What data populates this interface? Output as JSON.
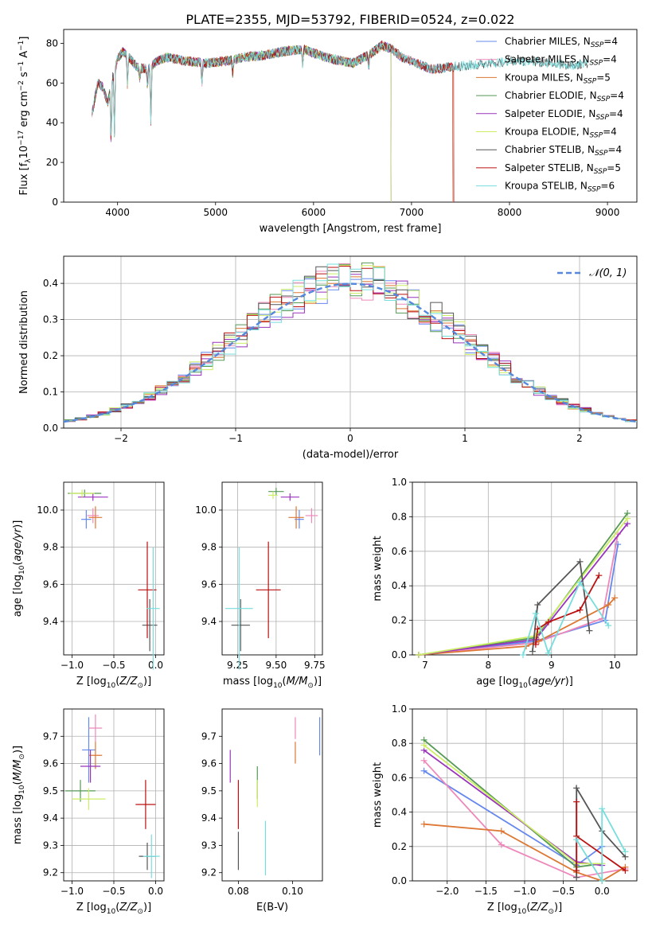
{
  "title": "PLATE=2355, MJD=53792, FIBERID=0524, z=0.022",
  "colors": {
    "chabrier_miles": "#6688ee",
    "salpeter_miles": "#ee88bb",
    "kroupa_miles": "#dd7733",
    "chabrier_elodie": "#559955",
    "salpeter_elodie": "#9933bb",
    "kroupa_elodie": "#ccee66",
    "chabrier_stelib": "#555555",
    "salpeter_stelib": "#bb1111",
    "kroupa_stelib": "#77dddd",
    "gaussian": "#5588dd",
    "grid": "#b0b0b0"
  },
  "chart_data": [
    {
      "id": "spectrum",
      "type": "line",
      "xlabel": "wavelength [Angstrom, rest frame]",
      "ylabel": "Flux [f$_\\lambda$10$^{-17}$ erg cm$^{-2}$ s$^{-1}$ A$^{-1}$]",
      "xlim": [
        3450,
        9300
      ],
      "ylim": [
        0,
        87
      ],
      "xticks": [
        4000,
        5000,
        6000,
        7000,
        8000,
        9000
      ],
      "yticks": [
        0,
        20,
        40,
        60,
        80
      ],
      "grid": false,
      "legend_position": "top-right",
      "legend": [
        {
          "label": "Chabrier MILES, N",
          "sub": "SSP",
          "suffix": "=4",
          "color_key": "chabrier_miles"
        },
        {
          "label": "Salpeter MILES, N",
          "sub": "SSP",
          "suffix": "=4",
          "color_key": "salpeter_miles"
        },
        {
          "label": "Kroupa MILES, N",
          "sub": "SSP",
          "suffix": "=5",
          "color_key": "kroupa_miles"
        },
        {
          "label": "Chabrier ELODIE, N",
          "sub": "SSP",
          "suffix": "=4",
          "color_key": "chabrier_elodie"
        },
        {
          "label": "Salpeter ELODIE, N",
          "sub": "SSP",
          "suffix": "=4",
          "color_key": "salpeter_elodie"
        },
        {
          "label": "Kroupa ELODIE, N",
          "sub": "SSP",
          "suffix": "=4",
          "color_key": "kroupa_elodie"
        },
        {
          "label": "Chabrier STELIB, N",
          "sub": "SSP",
          "suffix": "=4",
          "color_key": "chabrier_stelib"
        },
        {
          "label": "Salpeter STELIB, N",
          "sub": "SSP",
          "suffix": "=5",
          "color_key": "salpeter_stelib"
        },
        {
          "label": "Kroupa STELIB, N",
          "sub": "SSP",
          "suffix": "=6",
          "color_key": "kroupa_stelib"
        }
      ],
      "continuum": [
        [
          3740,
          45
        ],
        [
          3800,
          60
        ],
        [
          3850,
          58
        ],
        [
          3900,
          50
        ],
        [
          3950,
          63
        ],
        [
          4000,
          72
        ],
        [
          4050,
          76
        ],
        [
          4100,
          74
        ],
        [
          4200,
          68
        ],
        [
          4300,
          67
        ],
        [
          4400,
          71
        ],
        [
          4500,
          73
        ],
        [
          4700,
          71
        ],
        [
          4900,
          70
        ],
        [
          5100,
          71
        ],
        [
          5300,
          73
        ],
        [
          5500,
          74
        ],
        [
          5700,
          76
        ],
        [
          5900,
          77
        ],
        [
          6000,
          75
        ],
        [
          6200,
          72
        ],
        [
          6400,
          70
        ],
        [
          6560,
          74
        ],
        [
          6700,
          79
        ],
        [
          6800,
          77
        ],
        [
          6900,
          73
        ],
        [
          7000,
          71
        ],
        [
          7200,
          67
        ],
        [
          7400,
          68
        ],
        [
          7600,
          69
        ],
        [
          7800,
          70
        ],
        [
          8000,
          71
        ],
        [
          8200,
          71
        ],
        [
          8400,
          70
        ],
        [
          8600,
          69
        ],
        [
          8800,
          70
        ]
      ],
      "features": [
        [
          3934,
          -28
        ],
        [
          3968,
          -32
        ],
        [
          4101,
          -15
        ],
        [
          4340,
          -28
        ],
        [
          4861,
          -10
        ],
        [
          5175,
          -7
        ],
        [
          5890,
          -9
        ],
        [
          6563,
          -6
        ],
        [
          3727,
          -12
        ],
        [
          4226,
          -6
        ],
        [
          4305,
          -10
        ]
      ],
      "series_ranges": {
        "chabrier_miles": [
          3740,
          7420
        ],
        "salpeter_miles": [
          3740,
          7420
        ],
        "kroupa_miles": [
          3740,
          7420
        ],
        "chabrier_elodie": [
          3740,
          6790
        ],
        "salpeter_elodie": [
          3740,
          6790
        ],
        "kroupa_elodie": [
          3900,
          6790
        ],
        "chabrier_stelib": [
          3740,
          8800
        ],
        "salpeter_stelib": [
          3740,
          7430
        ],
        "kroupa_stelib": [
          3740,
          8800
        ]
      }
    },
    {
      "id": "residuals",
      "type": "histogram",
      "xlabel": "(data-model)/error",
      "ylabel": "Normed distribution",
      "xlim": [
        -2.5,
        2.5
      ],
      "ylim": [
        0,
        0.475
      ],
      "xticks": [
        -2,
        -1,
        0,
        1,
        2
      ],
      "yticks": [
        0.0,
        0.1,
        0.2,
        0.3,
        0.4
      ],
      "grid": true,
      "bins": {
        "start": -2.5,
        "width": 0.1,
        "count": 50
      },
      "legend": [
        {
          "label": "$\\mathcal{N}(0, 1)$",
          "color_key": "gaussian",
          "style": "dashed"
        }
      ],
      "legend_position": "top-right",
      "gaussian": {
        "mean": 0,
        "sigma": 1
      }
    },
    {
      "id": "age_vs_Z",
      "type": "scatter",
      "xlabel": "Z [log$_{10}$($Z/Z_\\odot$)]",
      "ylabel": "age  [log$_{10}$($age/yr$)]",
      "xlim": [
        -1.1,
        0.1
      ],
      "ylim": [
        9.22,
        10.15
      ],
      "xticks": [
        -1.0,
        -0.5,
        0.0
      ],
      "yticks": [
        9.4,
        9.6,
        9.8,
        10.0
      ],
      "grid": true,
      "points": [
        {
          "s": "chabrier_elodie",
          "x": -0.85,
          "y": 10.09,
          "xe": 0.2,
          "ye": 0.02
        },
        {
          "s": "salpeter_elodie",
          "x": -0.75,
          "y": 10.07,
          "xe": 0.18,
          "ye": 0.02
        },
        {
          "s": "kroupa_elodie",
          "x": -0.88,
          "y": 10.09,
          "xe": 0.15,
          "ye": 0.02
        },
        {
          "s": "chabrier_miles",
          "x": -0.83,
          "y": 9.95,
          "xe": 0.06,
          "ye": 0.05
        },
        {
          "s": "salpeter_miles",
          "x": -0.75,
          "y": 9.97,
          "xe": 0.07,
          "ye": 0.04
        },
        {
          "s": "kroupa_miles",
          "x": -0.72,
          "y": 9.96,
          "xe": 0.08,
          "ye": 0.06
        },
        {
          "s": "chabrier_stelib",
          "x": -0.07,
          "y": 9.38,
          "xe": 0.09,
          "ye": 0.14
        },
        {
          "s": "salpeter_stelib",
          "x": -0.1,
          "y": 9.57,
          "xe": 0.11,
          "ye": 0.26
        },
        {
          "s": "kroupa_stelib",
          "x": -0.03,
          "y": 9.47,
          "xe": 0.08,
          "ye": 0.33
        }
      ]
    },
    {
      "id": "age_vs_mass",
      "type": "scatter",
      "xlabel": "mass [log$_{10}$($M/M_\\odot$)]",
      "ylabel": "",
      "xlim": [
        9.15,
        9.8
      ],
      "ylim": [
        9.22,
        10.15
      ],
      "xticks": [
        9.25,
        9.5,
        9.75
      ],
      "yticks": [
        9.4,
        9.6,
        9.8,
        10.0
      ],
      "grid": true,
      "points": [
        {
          "s": "chabrier_elodie",
          "x": 9.5,
          "y": 10.1,
          "xe": 0.05,
          "ye": 0.02
        },
        {
          "s": "salpeter_elodie",
          "x": 9.59,
          "y": 10.07,
          "xe": 0.06,
          "ye": 0.02
        },
        {
          "s": "kroupa_elodie",
          "x": 9.48,
          "y": 10.08,
          "xe": 0.03,
          "ye": 0.02
        },
        {
          "s": "chabrier_miles",
          "x": 9.65,
          "y": 9.95,
          "xe": 0.03,
          "ye": 0.05
        },
        {
          "s": "salpeter_miles",
          "x": 9.73,
          "y": 9.97,
          "xe": 0.04,
          "ye": 0.04
        },
        {
          "s": "kroupa_miles",
          "x": 9.63,
          "y": 9.96,
          "xe": 0.05,
          "ye": 0.06
        },
        {
          "s": "chabrier_stelib",
          "x": 9.27,
          "y": 9.38,
          "xe": 0.06,
          "ye": 0.14
        },
        {
          "s": "salpeter_stelib",
          "x": 9.45,
          "y": 9.57,
          "xe": 0.08,
          "ye": 0.26
        },
        {
          "s": "kroupa_stelib",
          "x": 9.26,
          "y": 9.47,
          "xe": 0.09,
          "ye": 0.33
        }
      ]
    },
    {
      "id": "weight_vs_age",
      "type": "line",
      "xlabel": "age  [log$_{10}$($age/yr$)]",
      "ylabel": "mass weight",
      "xlim": [
        6.8,
        10.35
      ],
      "ylim": [
        0,
        1.0
      ],
      "xticks": [
        7,
        8,
        9,
        10
      ],
      "yticks": [
        0.0,
        0.2,
        0.4,
        0.6,
        0.8,
        1.0
      ],
      "grid": true,
      "series": [
        {
          "s": "chabrier_miles",
          "x": [
            6.9,
            8.75,
            9.85,
            10.05
          ],
          "y": [
            0.0,
            0.08,
            0.2,
            0.64
          ]
        },
        {
          "s": "salpeter_miles",
          "x": [
            6.9,
            8.75,
            9.8,
            10.05
          ],
          "y": [
            0.0,
            0.07,
            0.21,
            0.7
          ]
        },
        {
          "s": "kroupa_miles",
          "x": [
            6.9,
            8.6,
            8.8,
            9.9,
            10.0
          ],
          "y": [
            0.0,
            0.05,
            0.08,
            0.29,
            0.33
          ]
        },
        {
          "s": "chabrier_elodie",
          "x": [
            6.9,
            8.75,
            10.2
          ],
          "y": [
            0.0,
            0.1,
            0.82
          ]
        },
        {
          "s": "salpeter_elodie",
          "x": [
            6.9,
            8.75,
            10.2
          ],
          "y": [
            0.0,
            0.09,
            0.76
          ]
        },
        {
          "s": "kroupa_elodie",
          "x": [
            6.9,
            8.75,
            10.2
          ],
          "y": [
            0.0,
            0.11,
            0.79
          ]
        },
        {
          "s": "chabrier_stelib",
          "x": [
            8.7,
            8.78,
            9.45,
            9.6
          ],
          "y": [
            0.02,
            0.29,
            0.54,
            0.14
          ]
        },
        {
          "s": "salpeter_stelib",
          "x": [
            8.75,
            8.78,
            8.95,
            9.45,
            9.75
          ],
          "y": [
            0.06,
            0.15,
            0.19,
            0.26,
            0.46
          ]
        },
        {
          "s": "kroupa_stelib",
          "x": [
            8.55,
            8.75,
            8.95,
            9.45,
            9.9
          ],
          "y": [
            0.0,
            0.24,
            0.01,
            0.42,
            0.17
          ]
        }
      ]
    },
    {
      "id": "mass_vs_Z",
      "type": "scatter",
      "xlabel": "Z [log$_{10}$($Z/Z_\\odot$)]",
      "ylabel": "mass [log$_{10}$($M/M_\\odot$)]",
      "xlim": [
        -1.1,
        0.1
      ],
      "ylim": [
        9.17,
        9.8
      ],
      "xticks": [
        -1.0,
        -0.5,
        0.0
      ],
      "yticks": [
        9.2,
        9.3,
        9.4,
        9.5,
        9.6,
        9.7
      ],
      "grid": true,
      "points": [
        {
          "s": "chabrier_miles",
          "x": -0.8,
          "y": 9.65,
          "xe": 0.08,
          "ye": 0.12
        },
        {
          "s": "salpeter_miles",
          "x": -0.72,
          "y": 9.73,
          "xe": 0.08,
          "ye": 0.05
        },
        {
          "s": "kroupa_miles",
          "x": -0.72,
          "y": 9.63,
          "xe": 0.08,
          "ye": 0.05
        },
        {
          "s": "chabrier_elodie",
          "x": -0.9,
          "y": 9.5,
          "xe": 0.18,
          "ye": 0.04
        },
        {
          "s": "salpeter_elodie",
          "x": -0.78,
          "y": 9.59,
          "xe": 0.12,
          "ye": 0.06
        },
        {
          "s": "kroupa_elodie",
          "x": -0.8,
          "y": 9.47,
          "xe": 0.2,
          "ye": 0.04
        },
        {
          "s": "chabrier_stelib",
          "x": -0.1,
          "y": 9.26,
          "xe": 0.1,
          "ye": 0.05
        },
        {
          "s": "salpeter_stelib",
          "x": -0.12,
          "y": 9.45,
          "xe": 0.12,
          "ye": 0.09
        },
        {
          "s": "kroupa_stelib",
          "x": -0.05,
          "y": 9.26,
          "xe": 0.1,
          "ye": 0.08
        }
      ]
    },
    {
      "id": "mass_vs_ebv",
      "type": "scatter",
      "xlabel": "E(B-V)",
      "ylabel": "",
      "xlim": [
        0.074,
        0.111
      ],
      "ylim": [
        9.17,
        9.8
      ],
      "xticks": [
        0.08,
        0.1
      ],
      "yticks": [
        9.2,
        9.3,
        9.4,
        9.5,
        9.6,
        9.7
      ],
      "grid": false,
      "points": [
        {
          "s": "salpeter_miles",
          "x": 0.101,
          "y": 9.73,
          "xe": 0,
          "ye": 0.04
        },
        {
          "s": "chabrier_miles",
          "x": 0.11,
          "y": 9.7,
          "xe": 0,
          "ye": 0.07
        },
        {
          "s": "kroupa_miles",
          "x": 0.101,
          "y": 9.64,
          "xe": 0,
          "ye": 0.04
        },
        {
          "s": "salpeter_elodie",
          "x": 0.077,
          "y": 9.59,
          "xe": 0,
          "ye": 0.06
        },
        {
          "s": "chabrier_elodie",
          "x": 0.087,
          "y": 9.53,
          "xe": 0,
          "ye": 0.06
        },
        {
          "s": "kroupa_elodie",
          "x": 0.087,
          "y": 9.49,
          "xe": 0,
          "ye": 0.05
        },
        {
          "s": "salpeter_stelib",
          "x": 0.08,
          "y": 9.45,
          "xe": 0,
          "ye": 0.09
        },
        {
          "s": "chabrier_stelib",
          "x": 0.08,
          "y": 9.28,
          "xe": 0,
          "ye": 0.07
        },
        {
          "s": "kroupa_stelib",
          "x": 0.09,
          "y": 9.29,
          "xe": 0,
          "ye": 0.1
        }
      ]
    },
    {
      "id": "weight_vs_Z",
      "type": "line",
      "xlabel": "Z [log$_{10}$($Z/Z_\\odot$)]",
      "ylabel": "mass weight",
      "xlim": [
        -2.45,
        0.45
      ],
      "ylim": [
        0,
        1.0
      ],
      "xticks": [
        -2.0,
        -1.5,
        -1.0,
        -0.5,
        0.0
      ],
      "yticks": [
        0.0,
        0.2,
        0.4,
        0.6,
        0.8,
        1.0
      ],
      "grid": true,
      "series": [
        {
          "s": "chabrier_miles",
          "x": [
            -2.3,
            -0.33,
            0.0
          ],
          "y": [
            0.64,
            0.09,
            0.2
          ]
        },
        {
          "s": "salpeter_miles",
          "x": [
            -2.3,
            -1.3,
            -0.33,
            0.3
          ],
          "y": [
            0.7,
            0.21,
            0.02,
            0.07
          ]
        },
        {
          "s": "kroupa_miles",
          "x": [
            -2.3,
            -1.3,
            -0.33,
            0.0,
            0.3
          ],
          "y": [
            0.33,
            0.29,
            0.05,
            0.0,
            0.08
          ]
        },
        {
          "s": "chabrier_elodie",
          "x": [
            -2.3,
            -0.33,
            0.0
          ],
          "y": [
            0.82,
            0.08,
            0.1
          ]
        },
        {
          "s": "salpeter_elodie",
          "x": [
            -2.3,
            -0.33,
            0.0
          ],
          "y": [
            0.76,
            0.11,
            0.09
          ]
        },
        {
          "s": "kroupa_elodie",
          "x": [
            -2.3,
            -0.33,
            0.0
          ],
          "y": [
            0.79,
            0.1,
            0.1
          ]
        },
        {
          "s": "chabrier_stelib",
          "x": [
            -0.33,
            -0.33,
            0.0,
            0.3
          ],
          "y": [
            0.02,
            0.54,
            0.29,
            0.14
          ]
        },
        {
          "s": "salpeter_stelib",
          "x": [
            -0.33,
            -0.33,
            -0.33,
            0.3
          ],
          "y": [
            0.06,
            0.46,
            0.26,
            0.06
          ]
        },
        {
          "s": "kroupa_stelib",
          "x": [
            -0.33,
            0.0,
            0.0,
            0.3
          ],
          "y": [
            0.24,
            0.0,
            0.42,
            0.17
          ]
        }
      ]
    }
  ]
}
